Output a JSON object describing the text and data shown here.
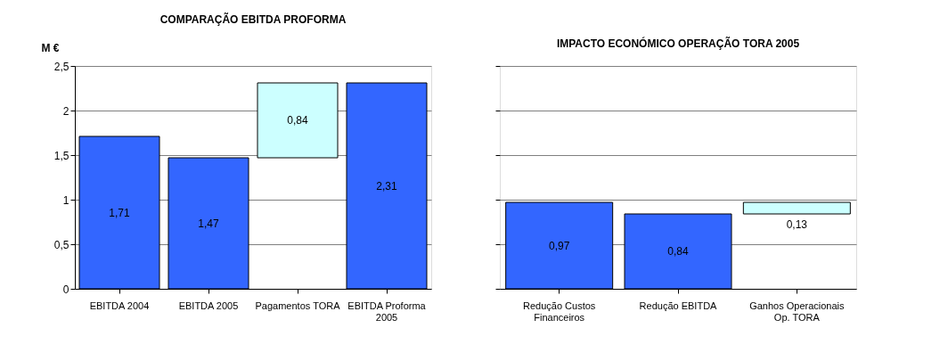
{
  "chart_data": [
    {
      "type": "bar",
      "title": "COMPARAÇÃO EBITDA PROFORMA",
      "ylabel": "M €",
      "categories": [
        "EBITDA 2004",
        "EBITDA 2005",
        "Pagamentos TORA",
        "EBITDA Proforma 2005"
      ],
      "values": [
        1.71,
        1.47,
        0.84,
        2.31
      ],
      "base": [
        0,
        0,
        1.47,
        0
      ],
      "colors": [
        "#3366ff",
        "#3366ff",
        "#ccffff",
        "#3366ff"
      ],
      "value_labels": [
        "1,71",
        "1,47",
        "0,84",
        "2,31"
      ],
      "ylim": [
        0,
        2.5
      ],
      "yticks": [
        {
          "value": 0,
          "label": "0"
        },
        {
          "value": 0.5,
          "label": "0,5"
        },
        {
          "value": 1,
          "label": "1"
        },
        {
          "value": 1.5,
          "label": "1,5"
        },
        {
          "value": 2,
          "label": "2"
        },
        {
          "value": 2.5,
          "label": "2,5"
        }
      ],
      "grid": "y"
    },
    {
      "type": "bar",
      "title": "IMPACTO ECONÓMICO OPERAÇÃO TORA 2005",
      "categories": [
        "Redução Custos Financeiros",
        "Redução EBITDA",
        "Ganhos Operacionais Op. TORA"
      ],
      "values": [
        0.97,
        0.84,
        0.13
      ],
      "base": [
        0,
        0,
        0.84
      ],
      "colors": [
        "#3366ff",
        "#3366ff",
        "#ccffff"
      ],
      "value_labels": [
        "0,97",
        "0,84",
        "0,13"
      ],
      "ylim": [
        0,
        2.5
      ],
      "yticks": [
        {
          "value": 0,
          "label": null
        },
        {
          "value": 0.5,
          "label": null
        },
        {
          "value": 1,
          "label": null
        },
        {
          "value": 1.5,
          "label": null
        },
        {
          "value": 2,
          "label": null
        },
        {
          "value": 2.5,
          "label": null
        }
      ],
      "grid": "y",
      "tick_labels": "x"
    }
  ]
}
